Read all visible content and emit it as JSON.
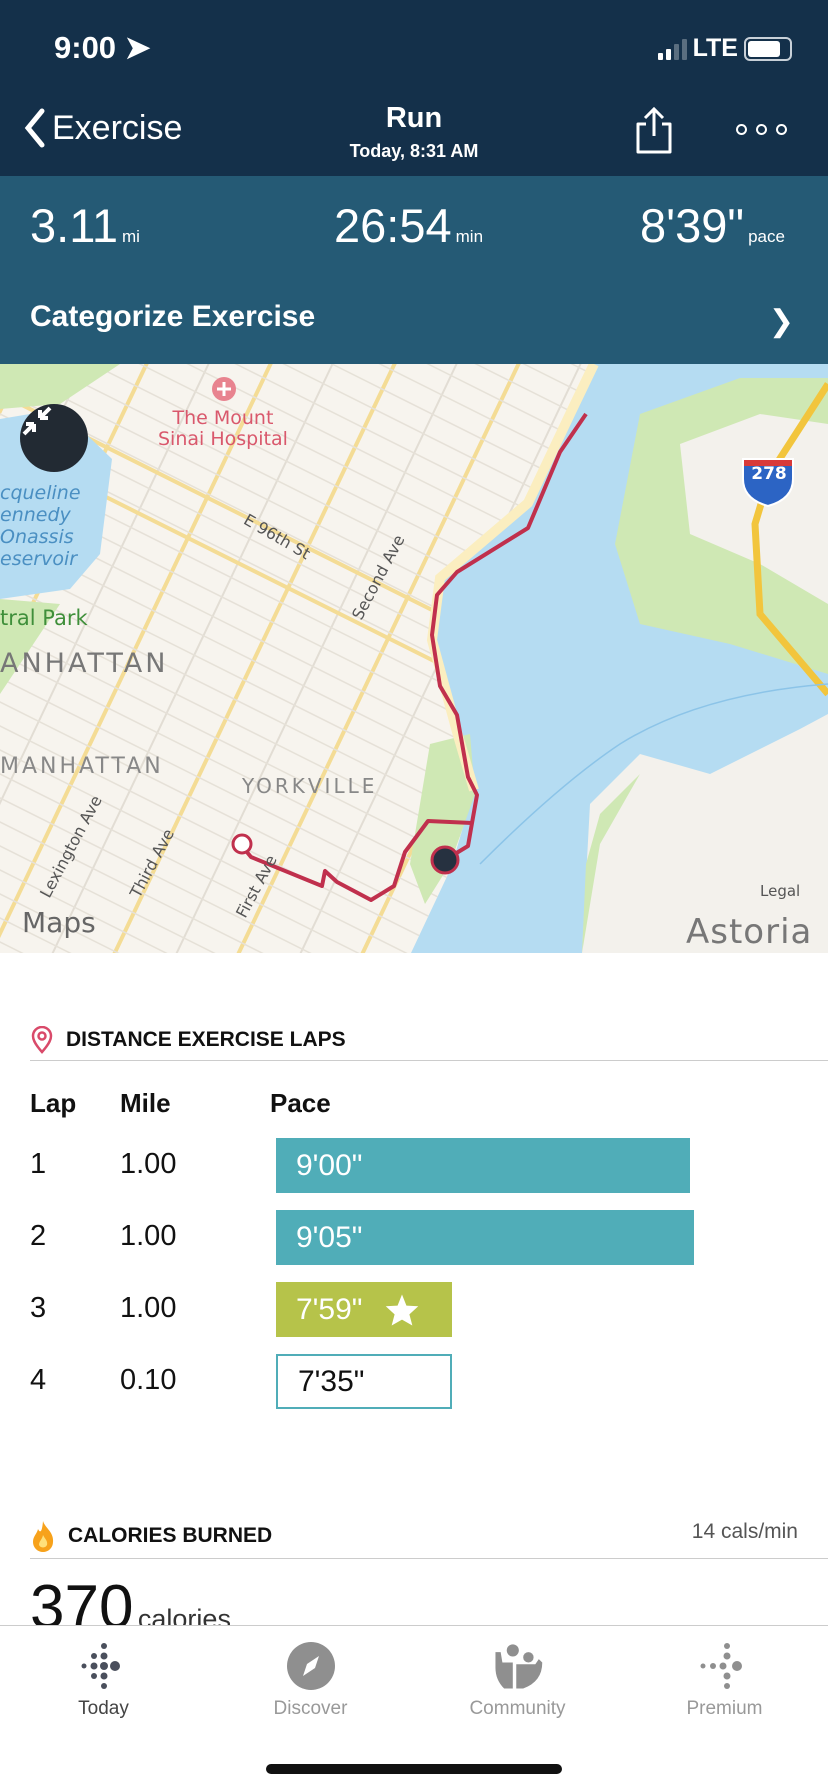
{
  "status": {
    "time": "9:00",
    "network": "LTE"
  },
  "header": {
    "back_label": "Exercise",
    "title": "Run",
    "subtitle": "Today, 8:31 AM"
  },
  "stats": {
    "distance": "3.11",
    "distance_unit": "mi",
    "duration": "26:54",
    "duration_unit": "min",
    "pace": "8'39\"",
    "pace_unit": "pace"
  },
  "categorize": {
    "label": "Categorize Exercise"
  },
  "map": {
    "labels": {
      "hospital": "The Mount\nSinai Hospital",
      "reservoir": "cqueline\nennedy\nOnassis\neservoir",
      "park": "tral Park",
      "manhattan1": "ANHATTAN",
      "manhattan2": "MANHATTAN",
      "yorkville": "YORKVILLE",
      "e96": "E 96th St",
      "second": "Second Ave",
      "first": "First Ave",
      "lexington": "Lexington Ave",
      "third": "Third Ave",
      "astoria": "Astoria",
      "highway": "278",
      "brand": "Maps",
      "legal": "Legal"
    },
    "colors": {
      "route": "#c0304d",
      "water": "#b5dcf2",
      "park": "#cfe8b4",
      "road": "#f7d884"
    }
  },
  "laps": {
    "title": "DISTANCE EXERCISE LAPS",
    "columns": [
      "Lap",
      "Mile",
      "Pace"
    ],
    "rows": [
      {
        "lap": "1",
        "mile": "1.00",
        "pace": "9'00\"",
        "pace_seconds": 540,
        "style": "normal"
      },
      {
        "lap": "2",
        "mile": "1.00",
        "pace": "9'05\"",
        "pace_seconds": 545,
        "style": "normal"
      },
      {
        "lap": "3",
        "mile": "1.00",
        "pace": "7'59\"",
        "pace_seconds": 479,
        "style": "best"
      },
      {
        "lap": "4",
        "mile": "0.10",
        "pace": "7'35\"",
        "pace_seconds": 455,
        "style": "partial"
      }
    ],
    "colors": {
      "normal": "#50adb8",
      "best": "#b6c34a"
    }
  },
  "calories": {
    "title": "CALORIES BURNED",
    "rate": "14 cals/min",
    "value": "370",
    "unit": "calories"
  },
  "tabs": [
    {
      "label": "Today",
      "active": true
    },
    {
      "label": "Discover"
    },
    {
      "label": "Community"
    },
    {
      "label": "Premium"
    }
  ]
}
